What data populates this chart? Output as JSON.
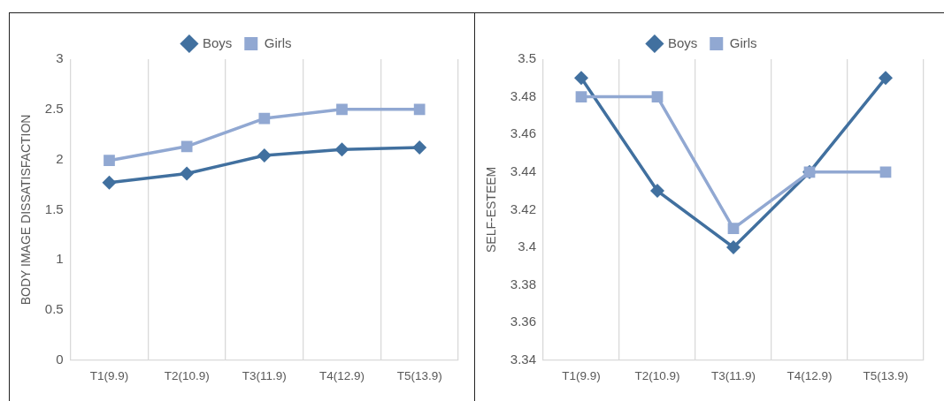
{
  "chart_data": [
    {
      "type": "line",
      "ylabel": "BODY IMAGE DISSATISFACTION",
      "categories": [
        "T1(9.9)",
        "T2(10.9)",
        "T3(11.9)",
        "T4(12.9)",
        "T5(13.9)"
      ],
      "series": [
        {
          "name": "Boys",
          "color": "#41709f",
          "marker": "diamond",
          "values": [
            1.77,
            1.86,
            2.04,
            2.1,
            2.12
          ]
        },
        {
          "name": "Girls",
          "color": "#91a8d2",
          "marker": "square",
          "values": [
            1.99,
            2.13,
            2.41,
            2.5,
            2.5
          ]
        }
      ],
      "ylim": [
        0,
        3
      ],
      "yticks": [
        0,
        0.5,
        1,
        1.5,
        2,
        2.5,
        3
      ],
      "grid": "x",
      "legend": "top",
      "line_style": "solid"
    },
    {
      "type": "line",
      "ylabel": "SELF-ESTEEM",
      "categories": [
        "T1(9.9)",
        "T2(10.9)",
        "T3(11.9)",
        "T4(12.9)",
        "T5(13.9)"
      ],
      "series": [
        {
          "name": "Boys",
          "color": "#41709f",
          "marker": "diamond",
          "values": [
            3.49,
            3.43,
            3.4,
            3.44,
            3.49
          ]
        },
        {
          "name": "Girls",
          "color": "#91a8d2",
          "marker": "square",
          "values": [
            3.48,
            3.48,
            3.41,
            3.44,
            3.44
          ]
        }
      ],
      "ylim": [
        3.34,
        3.5
      ],
      "yticks": [
        3.34,
        3.36,
        3.38,
        3.4,
        3.42,
        3.44,
        3.46,
        3.48,
        3.5
      ],
      "grid": "x",
      "legend": "top",
      "line_style": "solid"
    }
  ]
}
